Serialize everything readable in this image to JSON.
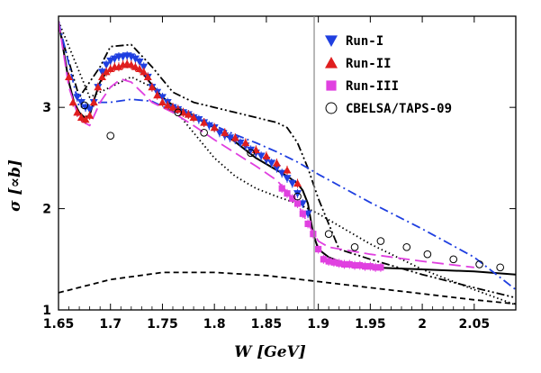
{
  "chart_data": {
    "type": "line",
    "xlabel": "W [GeV]",
    "ylabel": "σ [∝b]",
    "xlim": [
      1.65,
      2.09
    ],
    "ylim": [
      1.0,
      3.9
    ],
    "xticks": [
      1.65,
      1.7,
      1.75,
      1.8,
      1.85,
      1.9,
      1.95,
      2.0,
      2.05
    ],
    "xtick_labels": [
      "1.65",
      "1.7",
      "1.75",
      "1.8",
      "1.85",
      "1.9",
      "1.95",
      "2",
      "2.05"
    ],
    "yticks": [
      1,
      2,
      3
    ],
    "ytick_labels": [
      "1",
      "2",
      "3"
    ],
    "vertical_line_x": 1.896,
    "legend": [
      {
        "label": "Run-I",
        "marker": "triangle-down",
        "color": "#1f3fe0"
      },
      {
        "label": "Run-II",
        "marker": "triangle-up",
        "color": "#e01e1e"
      },
      {
        "label": "Run-III",
        "marker": "square",
        "color": "#e040e0"
      },
      {
        "label": "CBELSA/TAPS-09",
        "marker": "open-circle",
        "color": "#000000"
      }
    ],
    "series": [
      {
        "name": "Run-I",
        "type": "scatter",
        "marker": "triangle-down",
        "color": "#1f3fe0",
        "x": [
          1.668,
          1.672,
          1.676,
          1.68,
          1.684,
          1.688,
          1.692,
          1.696,
          1.7,
          1.704,
          1.708,
          1.712,
          1.716,
          1.72,
          1.724,
          1.728,
          1.732,
          1.736,
          1.74,
          1.745,
          1.75,
          1.755,
          1.76,
          1.765,
          1.77,
          1.775,
          1.78,
          1.785,
          1.79,
          1.795,
          1.8,
          1.805,
          1.81,
          1.815,
          1.82,
          1.825,
          1.83,
          1.835,
          1.84,
          1.845,
          1.85,
          1.855,
          1.86,
          1.865,
          1.87,
          1.875,
          1.88,
          1.885,
          1.89
        ],
        "y": [
          3.1,
          3.05,
          3.0,
          2.98,
          3.05,
          3.2,
          3.35,
          3.42,
          3.46,
          3.48,
          3.5,
          3.5,
          3.51,
          3.5,
          3.48,
          3.45,
          3.4,
          3.3,
          3.2,
          3.15,
          3.1,
          3.05,
          3.0,
          2.98,
          2.95,
          2.93,
          2.9,
          2.88,
          2.85,
          2.82,
          2.8,
          2.75,
          2.72,
          2.7,
          2.68,
          2.65,
          2.62,
          2.58,
          2.55,
          2.52,
          2.48,
          2.45,
          2.4,
          2.35,
          2.3,
          2.25,
          2.15,
          2.05,
          1.95
        ]
      },
      {
        "name": "Run-II",
        "type": "scatter",
        "marker": "triangle-up",
        "color": "#e01e1e",
        "x": [
          1.66,
          1.664,
          1.668,
          1.672,
          1.676,
          1.68,
          1.684,
          1.688,
          1.692,
          1.696,
          1.7,
          1.704,
          1.708,
          1.712,
          1.716,
          1.72,
          1.724,
          1.728,
          1.732,
          1.736,
          1.74,
          1.745,
          1.75,
          1.755,
          1.76,
          1.765,
          1.77,
          1.775,
          1.78,
          1.79,
          1.8,
          1.81,
          1.82,
          1.83,
          1.84,
          1.85,
          1.86,
          1.87,
          1.88
        ],
        "y": [
          3.3,
          3.05,
          2.95,
          2.9,
          2.88,
          2.92,
          3.05,
          3.2,
          3.3,
          3.35,
          3.38,
          3.4,
          3.4,
          3.42,
          3.43,
          3.42,
          3.4,
          3.38,
          3.35,
          3.3,
          3.2,
          3.12,
          3.05,
          3.02,
          3.0,
          2.98,
          2.95,
          2.93,
          2.9,
          2.85,
          2.8,
          2.75,
          2.7,
          2.65,
          2.58,
          2.52,
          2.45,
          2.38,
          2.25
        ]
      },
      {
        "name": "Run-III",
        "type": "scatter",
        "marker": "square",
        "color": "#e040e0",
        "x": [
          1.865,
          1.87,
          1.875,
          1.88,
          1.885,
          1.89,
          1.895,
          1.9,
          1.905,
          1.91,
          1.915,
          1.92,
          1.925,
          1.93,
          1.935,
          1.94,
          1.945,
          1.95,
          1.955,
          1.96
        ],
        "y": [
          2.2,
          2.15,
          2.1,
          2.05,
          1.95,
          1.85,
          1.75,
          1.6,
          1.5,
          1.48,
          1.47,
          1.46,
          1.45,
          1.45,
          1.44,
          1.44,
          1.43,
          1.43,
          1.42,
          1.42
        ]
      },
      {
        "name": "CBELSA/TAPS-09",
        "type": "scatter",
        "marker": "open-circle",
        "color": "#000000",
        "x": [
          1.675,
          1.7,
          1.765,
          1.79,
          1.835,
          1.88,
          1.91,
          1.935,
          1.96,
          1.985,
          2.005,
          2.03,
          2.055,
          2.075
        ],
        "y": [
          3.02,
          2.72,
          2.95,
          2.75,
          2.55,
          2.12,
          1.75,
          1.62,
          1.68,
          1.62,
          1.55,
          1.5,
          1.45,
          1.42
        ]
      },
      {
        "name": "solid",
        "type": "line",
        "style": "solid",
        "color": "#000000",
        "x": [
          1.65,
          1.655,
          1.66,
          1.665,
          1.67,
          1.675,
          1.68,
          1.685,
          1.69,
          1.695,
          1.7,
          1.71,
          1.72,
          1.73,
          1.74,
          1.75,
          1.76,
          1.77,
          1.78,
          1.79,
          1.8,
          1.81,
          1.82,
          1.83,
          1.84,
          1.85,
          1.86,
          1.87,
          1.88,
          1.885,
          1.89,
          1.895,
          1.9,
          1.91,
          1.92,
          1.93,
          1.95,
          2.0,
          2.05,
          2.09
        ],
        "y": [
          3.85,
          3.55,
          3.25,
          3.05,
          2.95,
          2.9,
          2.92,
          3.1,
          3.25,
          3.33,
          3.37,
          3.4,
          3.4,
          3.35,
          3.22,
          3.1,
          3.02,
          2.97,
          2.92,
          2.85,
          2.8,
          2.73,
          2.66,
          2.58,
          2.5,
          2.44,
          2.38,
          2.32,
          2.25,
          2.18,
          2.05,
          1.75,
          1.6,
          1.52,
          1.48,
          1.45,
          1.42,
          1.4,
          1.38,
          1.35
        ]
      },
      {
        "name": "dashed",
        "type": "line",
        "style": "dashed",
        "color": "#000000",
        "x": [
          1.65,
          1.7,
          1.75,
          1.8,
          1.85,
          1.9,
          1.95,
          2.0,
          2.05,
          2.09
        ],
        "y": [
          1.17,
          1.3,
          1.37,
          1.37,
          1.34,
          1.28,
          1.22,
          1.16,
          1.1,
          1.06
        ]
      },
      {
        "name": "dotted",
        "type": "line",
        "style": "dotted",
        "color": "#000000",
        "x": [
          1.65,
          1.68,
          1.7,
          1.72,
          1.74,
          1.76,
          1.78,
          1.8,
          1.82,
          1.84,
          1.86,
          1.88,
          1.9,
          1.95,
          2.0,
          2.05,
          2.09
        ],
        "y": [
          3.85,
          3.1,
          3.2,
          3.3,
          3.2,
          3.0,
          2.75,
          2.5,
          2.32,
          2.2,
          2.12,
          2.05,
          1.95,
          1.65,
          1.4,
          1.2,
          1.05
        ]
      },
      {
        "name": "dash-dot-dot",
        "type": "line",
        "style": "dash-dot-dot",
        "color": "#000000",
        "x": [
          1.65,
          1.67,
          1.69,
          1.7,
          1.72,
          1.74,
          1.76,
          1.78,
          1.8,
          1.82,
          1.84,
          1.86,
          1.87,
          1.88,
          1.89,
          1.9,
          1.92,
          1.95,
          2.0,
          2.05,
          2.09
        ],
        "y": [
          3.8,
          3.1,
          3.4,
          3.6,
          3.62,
          3.4,
          3.15,
          3.05,
          3.0,
          2.95,
          2.9,
          2.85,
          2.8,
          2.65,
          2.4,
          2.1,
          1.6,
          1.5,
          1.35,
          1.22,
          1.12
        ]
      },
      {
        "name": "blue-dash-dot",
        "type": "line",
        "style": "dash-dot",
        "color": "#1f3fe0",
        "x": [
          1.65,
          1.67,
          1.69,
          1.7,
          1.72,
          1.74,
          1.76,
          1.78,
          1.8,
          1.82,
          1.84,
          1.86,
          1.88,
          1.9,
          1.95,
          2.0,
          2.05,
          2.09
        ],
        "y": [
          3.85,
          3.0,
          3.05,
          3.05,
          3.08,
          3.06,
          2.96,
          2.9,
          2.82,
          2.73,
          2.65,
          2.56,
          2.46,
          2.34,
          2.06,
          1.8,
          1.52,
          1.2
        ]
      },
      {
        "name": "magenta-long-dash",
        "type": "line",
        "style": "long-dash",
        "color": "#e040e0",
        "x": [
          1.65,
          1.66,
          1.67,
          1.68,
          1.69,
          1.7,
          1.71,
          1.72,
          1.73,
          1.74,
          1.75,
          1.76,
          1.78,
          1.8,
          1.82,
          1.84,
          1.86,
          1.88,
          1.89,
          1.9,
          1.91,
          1.95,
          2.0,
          2.05
        ],
        "y": [
          3.85,
          3.2,
          2.88,
          2.82,
          3.05,
          3.2,
          3.28,
          3.25,
          3.15,
          3.05,
          3.0,
          2.95,
          2.82,
          2.68,
          2.55,
          2.42,
          2.28,
          2.05,
          1.85,
          1.68,
          1.62,
          1.55,
          1.48,
          1.42
        ]
      }
    ]
  }
}
